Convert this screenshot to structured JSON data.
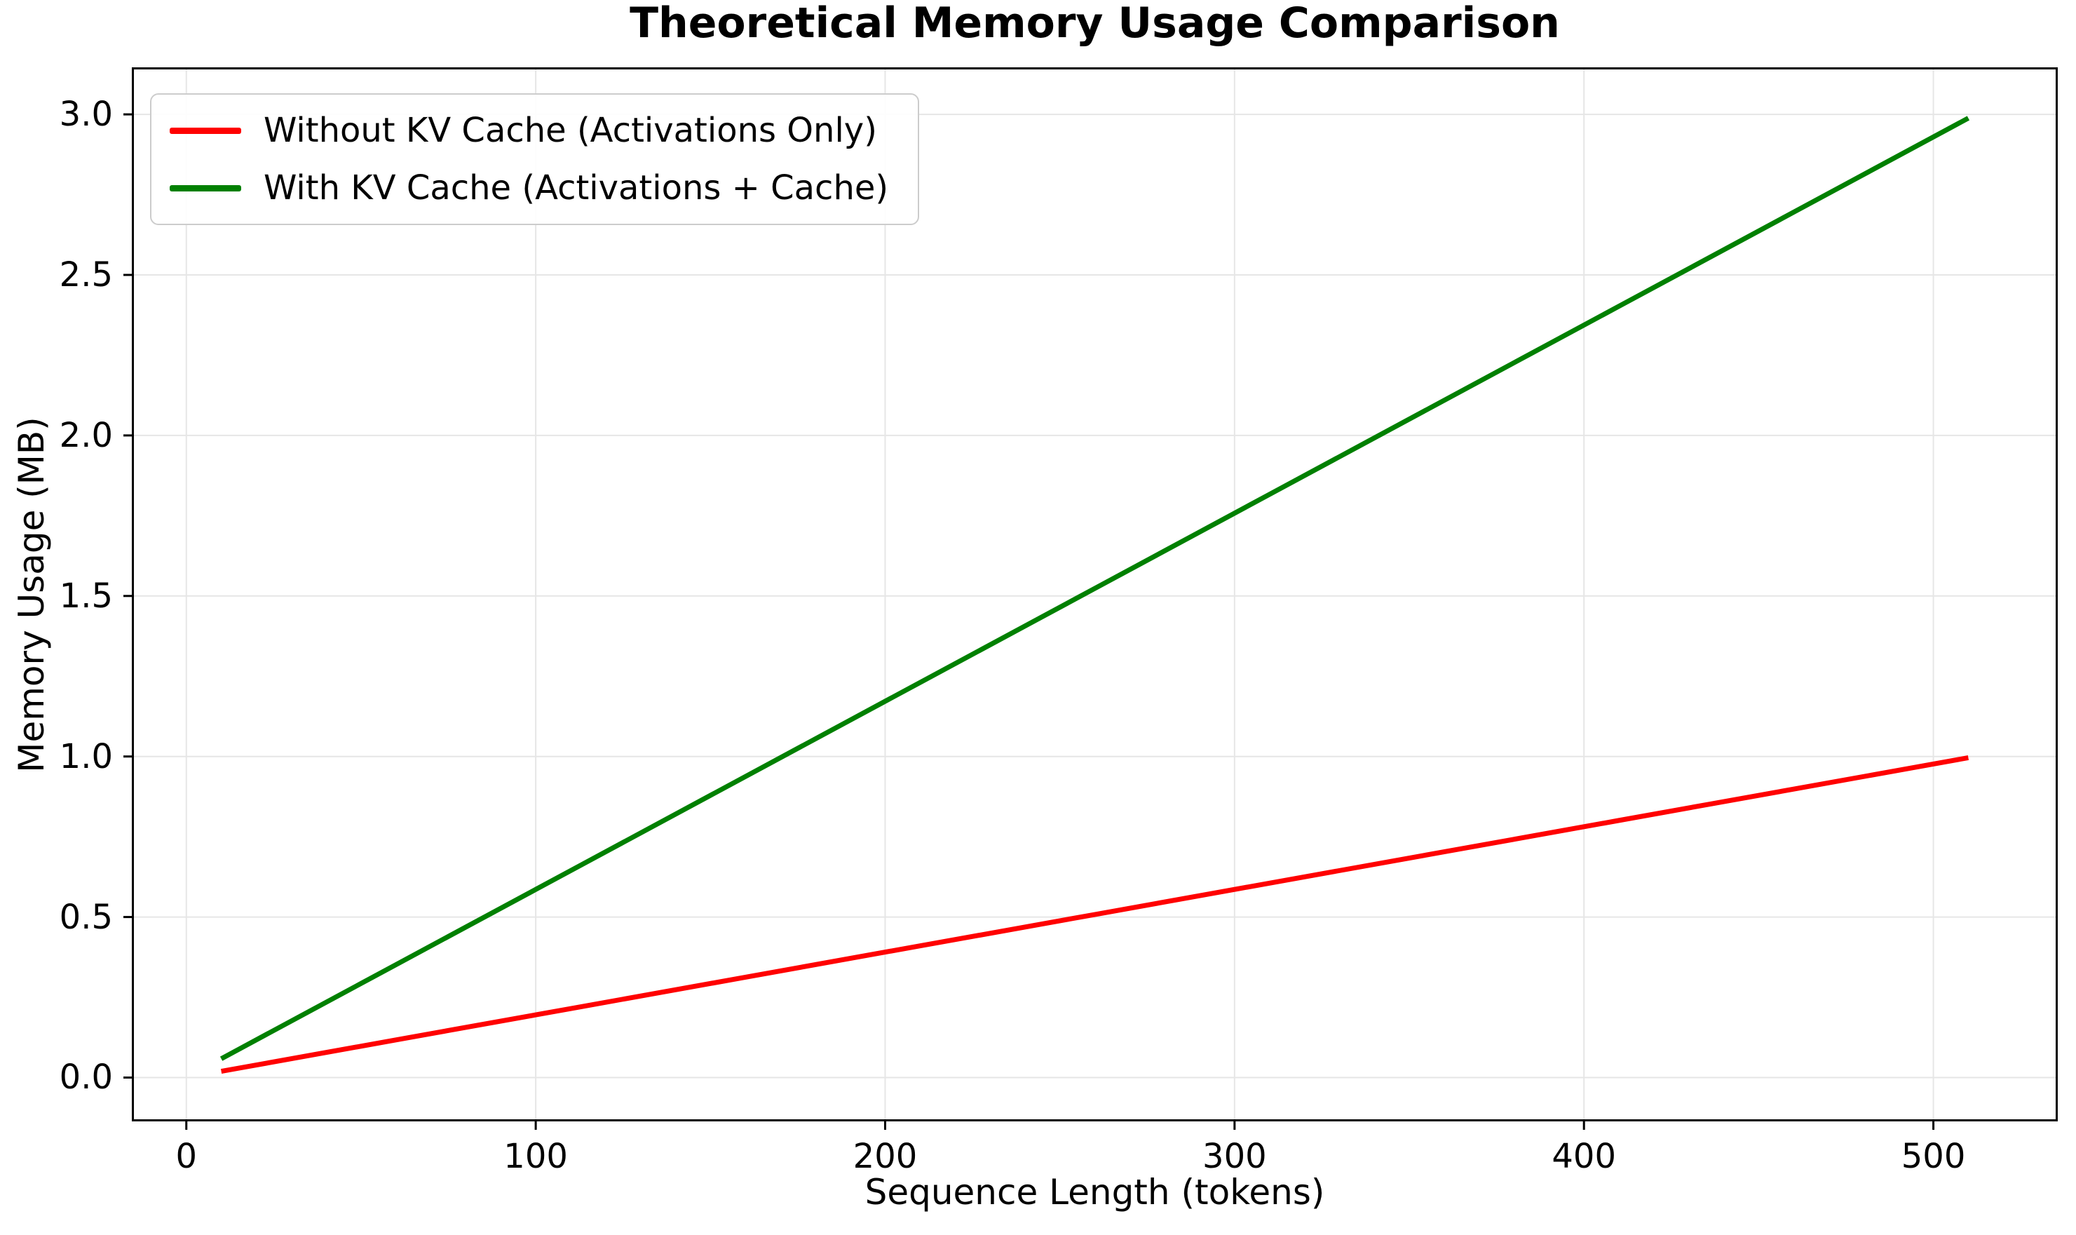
{
  "chart_data": {
    "type": "line",
    "title": "Theoretical Memory Usage Comparison",
    "xlabel": "Sequence Length (tokens)",
    "ylabel": "Memory Usage (MB)",
    "xlim": [
      -15,
      535
    ],
    "ylim": [
      -0.13,
      3.14
    ],
    "grid": true,
    "grid_color": "#e6e6e6",
    "legend_position": "upper-left",
    "x": [
      10,
      60,
      110,
      160,
      210,
      260,
      310,
      360,
      410,
      460,
      510
    ],
    "series": [
      {
        "name": "Without KV Cache (Activations Only)",
        "color": "#ff0000",
        "values": [
          0.0195,
          0.1172,
          0.2148,
          0.3125,
          0.4102,
          0.5078,
          0.6055,
          0.7031,
          0.8008,
          0.8984,
          0.9961
        ]
      },
      {
        "name": "With KV Cache (Activations + Cache)",
        "color": "#008000",
        "values": [
          0.0586,
          0.3516,
          0.6445,
          0.9375,
          1.2305,
          1.5234,
          1.8164,
          2.1094,
          2.4023,
          2.6953,
          2.9883
        ]
      }
    ],
    "xticks": {
      "values": [
        0,
        100,
        200,
        300,
        400,
        500
      ],
      "labels": [
        "0",
        "100",
        "200",
        "300",
        "400",
        "500"
      ]
    },
    "yticks": {
      "values": [
        0.0,
        0.5,
        1.0,
        1.5,
        2.0,
        2.5,
        3.0
      ],
      "labels": [
        "0.0",
        "0.5",
        "1.0",
        "1.5",
        "2.0",
        "2.5",
        "3.0"
      ]
    }
  }
}
